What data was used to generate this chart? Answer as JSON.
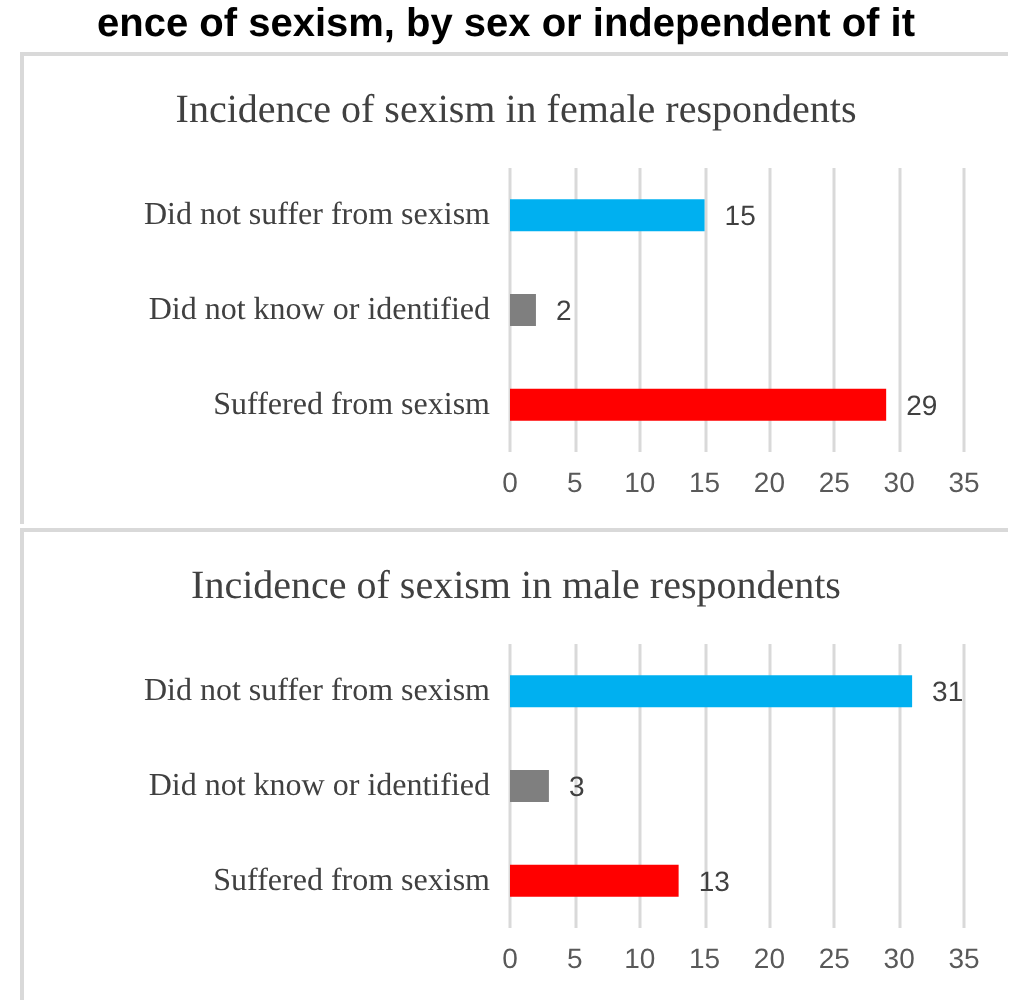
{
  "chart_data": [
    {
      "type": "bar",
      "orientation": "horizontal",
      "title": "Incidence of sexism in female respondents",
      "annotations": [
        "ence of sexism, by sex or independent of it"
      ],
      "categories": [
        "Did not suffer from sexism",
        "Did not know or identified",
        "Suffered from sexism"
      ],
      "values": [
        15,
        2,
        29
      ],
      "colors": [
        "#00b0f0",
        "#7f7f7f",
        "#ff0000"
      ],
      "data_labels": true,
      "xlim": [
        0,
        35
      ],
      "xticks": [
        0,
        5,
        10,
        15,
        20,
        25,
        30,
        35
      ],
      "grid": "x"
    },
    {
      "type": "bar",
      "orientation": "horizontal",
      "title": "Incidence of sexism in male respondents",
      "categories": [
        "Did not suffer from sexism",
        "Did not know or identified",
        "Suffered from sexism"
      ],
      "values": [
        31,
        3,
        13
      ],
      "colors": [
        "#00b0f0",
        "#7f7f7f",
        "#ff0000"
      ],
      "data_labels": true,
      "xlim": [
        0,
        35
      ],
      "xticks": [
        0,
        5,
        10,
        15,
        20,
        25,
        30,
        35
      ],
      "grid": "x"
    }
  ]
}
